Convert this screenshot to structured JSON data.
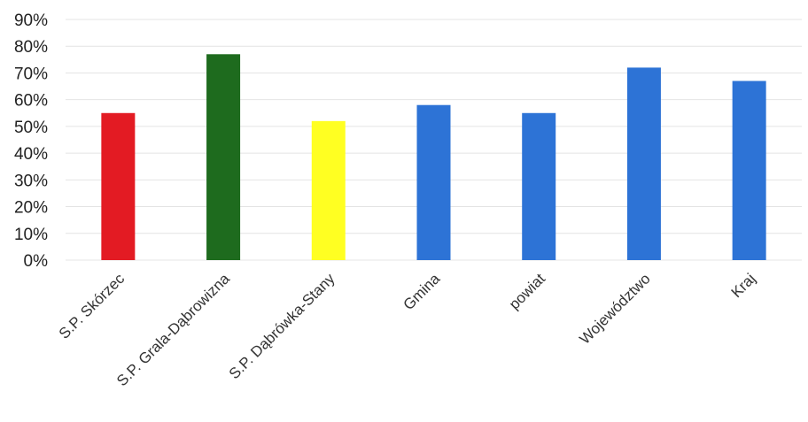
{
  "chart_data": {
    "type": "bar",
    "title": "",
    "xlabel": "",
    "ylabel": "",
    "categories": [
      "S.P. Skórzec",
      "S.P. Grala-Dąbrowizna",
      "S.P. Dąbrówka-Stany",
      "Gmina",
      "powiat",
      "Województwo",
      "Kraj"
    ],
    "values": [
      0.55,
      0.77,
      0.52,
      0.58,
      0.55,
      0.72,
      0.67
    ],
    "colors": [
      "#e31b23",
      "#1e6b1e",
      "#ffff22",
      "#2d73d6",
      "#2d73d6",
      "#2d73d6",
      "#2d73d6"
    ],
    "ylim": [
      0,
      0.9
    ],
    "yticks": [
      "0%",
      "10%",
      "20%",
      "30%",
      "40%",
      "50%",
      "60%",
      "70%",
      "80%",
      "90%"
    ],
    "grid": true,
    "legend": "none"
  }
}
